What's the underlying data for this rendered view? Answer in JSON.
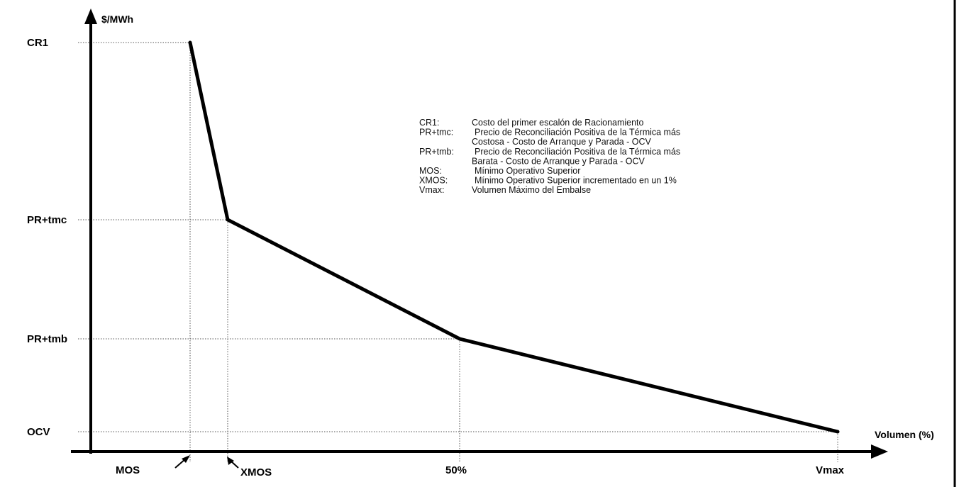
{
  "chart_data": {
    "type": "line",
    "title": "",
    "ylabel": "$/MWh",
    "xlabel": "Volumen (%)",
    "y_levels": [
      "OCV",
      "PR+tmb",
      "PR+tmc",
      "CR1"
    ],
    "x_marks": [
      "MOS",
      "XMOS",
      "50%",
      "Vmax"
    ],
    "series": [
      {
        "points": [
          {
            "x": "MOS",
            "y": "CR1"
          },
          {
            "x": "XMOS",
            "y": "PR+tmc"
          },
          {
            "x": "50%",
            "y": "PR+tmb"
          },
          {
            "x": "Vmax",
            "y": "OCV"
          }
        ]
      }
    ],
    "grid": false,
    "legend": "top-right",
    "legend_entries": [
      {
        "key": "CR1:",
        "lines": [
          "Costo del primer escalón de Racionamiento"
        ]
      },
      {
        "key": "PR+tmc:",
        "lines": [
          "Precio de Reconciliación Positiva de la Térmica más",
          "Costosa - Costo de Arranque y Parada - OCV"
        ]
      },
      {
        "key": "PR+tmb:",
        "lines": [
          "Precio de Reconciliación Positiva de la Térmica más",
          "Barata - Costo de Arranque y Parada - OCV"
        ]
      },
      {
        "key": "MOS:",
        "lines": [
          "Mínimo Operativo Superior"
        ]
      },
      {
        "key": "XMOS:",
        "lines": [
          "Mínimo Operativo Superior incrementado en un 1%"
        ]
      },
      {
        "key": "Vmax:",
        "lines": [
          "Volumen Máximo del Embalse"
        ]
      }
    ]
  }
}
